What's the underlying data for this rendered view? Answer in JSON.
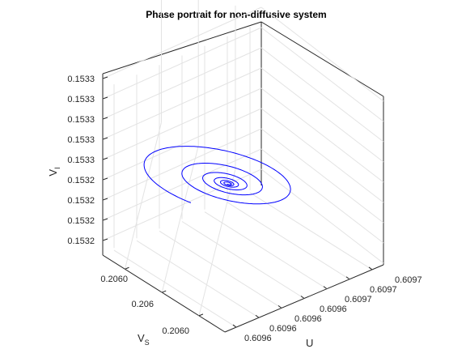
{
  "chart_data": {
    "type": "line",
    "title": "Phase portrait for non-diffusive system",
    "xlabel": "U",
    "ylabel_main": "V",
    "ylabel_sub": "S",
    "zlabel_main": "V",
    "zlabel_sub": "I",
    "x_ticks": [
      "0.6096",
      "0.6096",
      "0.6096",
      "0.6096",
      "0.6097",
      "0.6097",
      "0.6097"
    ],
    "y_ticks": [
      "0.2060",
      "0.206",
      "0.2060"
    ],
    "z_ticks": [
      "0.1532",
      "0.1532",
      "0.1532",
      "0.1532",
      "0.1533",
      "0.1533",
      "0.1533",
      "0.1533",
      "0.1533"
    ],
    "grid": true,
    "series": [
      {
        "color": "#0000ff",
        "trajectory": "decaying spiral converging to fixed point",
        "center": {
          "U": 0.60965,
          "V_S": 0.206,
          "V_I": 0.15328
        },
        "loops": 6,
        "decay": 0.55
      }
    ]
  }
}
